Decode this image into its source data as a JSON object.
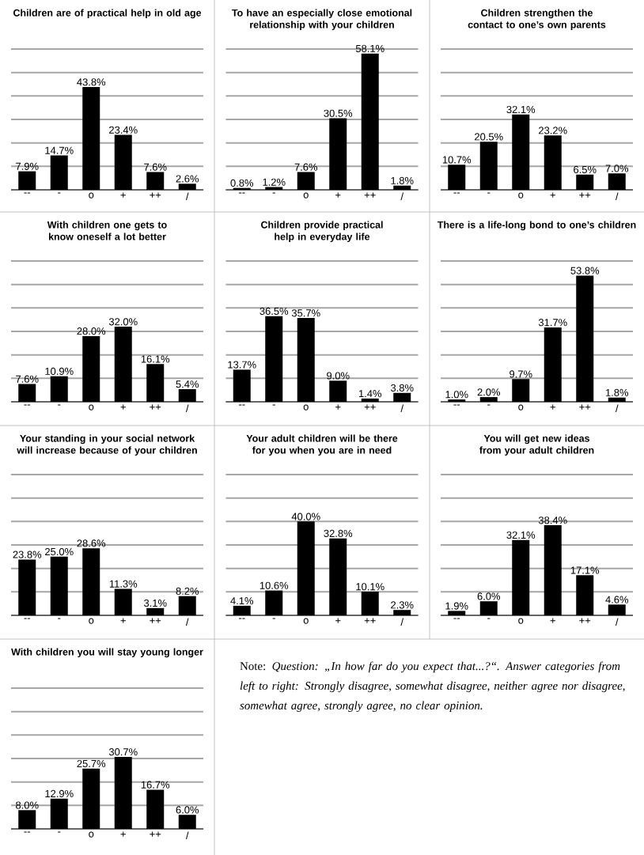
{
  "chart_data": [
    {
      "type": "bar",
      "title": "Children are of practical help in old age",
      "categories": [
        "--",
        "-",
        "o",
        "+",
        "++",
        "/"
      ],
      "values": [
        7.9,
        14.7,
        43.8,
        23.4,
        7.6,
        2.6
      ],
      "value_labels": [
        "7.9%",
        "14.7%",
        "43.8%",
        "23.4%",
        "7.6%",
        "2.6%"
      ],
      "color": "#000000",
      "ylim": [
        0,
        60
      ],
      "yticks": [
        {
          "value": 0,
          "label": null
        },
        {
          "value": 10,
          "label": null
        },
        {
          "value": 20,
          "label": null
        },
        {
          "value": 30,
          "label": null
        },
        {
          "value": 40,
          "label": null
        },
        {
          "value": 50,
          "label": null
        },
        {
          "value": 60,
          "label": null
        }
      ],
      "grid": "y",
      "tick_labels": "x"
    },
    {
      "type": "bar",
      "title": "To have an especially close emotional relationship with your children",
      "categories": [
        "--",
        "-",
        "o",
        "+",
        "++",
        "/"
      ],
      "values": [
        0.8,
        1.2,
        7.6,
        30.5,
        58.1,
        1.8
      ],
      "value_labels": [
        "0.8%",
        "1.2%",
        "7.6%",
        "30.5%",
        "58.1%",
        "1.8%"
      ],
      "color": "#000000",
      "ylim": [
        0,
        60
      ],
      "yticks": [
        {
          "value": 0,
          "label": null
        },
        {
          "value": 10,
          "label": null
        },
        {
          "value": 20,
          "label": null
        },
        {
          "value": 30,
          "label": null
        },
        {
          "value": 40,
          "label": null
        },
        {
          "value": 50,
          "label": null
        },
        {
          "value": 60,
          "label": null
        }
      ],
      "grid": "y",
      "tick_labels": "x"
    },
    {
      "type": "bar",
      "title": "Children strengthen the contact to one’s own parents",
      "categories": [
        "--",
        "-",
        "o",
        "+",
        "++",
        "/"
      ],
      "values": [
        10.7,
        20.5,
        32.1,
        23.2,
        6.5,
        7.0
      ],
      "value_labels": [
        "10.7%",
        "20.5%",
        "32.1%",
        "23.2%",
        "6.5%",
        "7.0%"
      ],
      "color": "#000000",
      "ylim": [
        0,
        60
      ],
      "yticks": [
        {
          "value": 0,
          "label": null
        },
        {
          "value": 10,
          "label": null
        },
        {
          "value": 20,
          "label": null
        },
        {
          "value": 30,
          "label": null
        },
        {
          "value": 40,
          "label": null
        },
        {
          "value": 50,
          "label": null
        },
        {
          "value": 60,
          "label": null
        }
      ],
      "grid": "y",
      "tick_labels": "x"
    },
    {
      "type": "bar",
      "title": "With children one gets to know oneself a lot better",
      "categories": [
        "--",
        "-",
        "o",
        "+",
        "++",
        "/"
      ],
      "values": [
        7.6,
        10.9,
        28.0,
        32.0,
        16.1,
        5.4
      ],
      "value_labels": [
        "7.6%",
        "10.9%",
        "28.0%",
        "32.0%",
        "16.1%",
        "5.4%"
      ],
      "color": "#000000",
      "ylim": [
        0,
        60
      ],
      "yticks": [
        {
          "value": 0,
          "label": null
        },
        {
          "value": 10,
          "label": null
        },
        {
          "value": 20,
          "label": null
        },
        {
          "value": 30,
          "label": null
        },
        {
          "value": 40,
          "label": null
        },
        {
          "value": 50,
          "label": null
        },
        {
          "value": 60,
          "label": null
        }
      ],
      "grid": "y",
      "tick_labels": "x"
    },
    {
      "type": "bar",
      "title": "Children provide practical help in everyday life",
      "categories": [
        "--",
        "-",
        "o",
        "+",
        "++",
        "/"
      ],
      "values": [
        13.7,
        36.5,
        35.7,
        9.0,
        1.4,
        3.8
      ],
      "value_labels": [
        "13.7%",
        "36.5%",
        "35.7%",
        "9.0%",
        "1.4%",
        "3.8%"
      ],
      "color": "#000000",
      "ylim": [
        0,
        60
      ],
      "yticks": [
        {
          "value": 0,
          "label": null
        },
        {
          "value": 10,
          "label": null
        },
        {
          "value": 20,
          "label": null
        },
        {
          "value": 30,
          "label": null
        },
        {
          "value": 40,
          "label": null
        },
        {
          "value": 50,
          "label": null
        },
        {
          "value": 60,
          "label": null
        }
      ],
      "grid": "y",
      "tick_labels": "x"
    },
    {
      "type": "bar",
      "title": "There is a life-long bond to one’s children",
      "categories": [
        "--",
        "-",
        "o",
        "+",
        "++",
        "/"
      ],
      "values": [
        1.0,
        2.0,
        9.7,
        31.7,
        53.8,
        1.8
      ],
      "value_labels": [
        "1.0%",
        "2.0%",
        "9.7%",
        "31.7%",
        "53.8%",
        "1.8%"
      ],
      "color": "#000000",
      "ylim": [
        0,
        60
      ],
      "yticks": [
        {
          "value": 0,
          "label": null
        },
        {
          "value": 10,
          "label": null
        },
        {
          "value": 20,
          "label": null
        },
        {
          "value": 30,
          "label": null
        },
        {
          "value": 40,
          "label": null
        },
        {
          "value": 50,
          "label": null
        },
        {
          "value": 60,
          "label": null
        }
      ],
      "grid": "y",
      "tick_labels": "x"
    },
    {
      "type": "bar",
      "title": "Your standing in your social network will increase because of your children",
      "categories": [
        "--",
        "-",
        "o",
        "+",
        "++",
        "/"
      ],
      "values": [
        23.8,
        25.0,
        28.6,
        11.3,
        3.1,
        8.2
      ],
      "value_labels": [
        "23.8%",
        "25.0%",
        "28.6%",
        "11.3%",
        "3.1%",
        "8.2%"
      ],
      "color": "#000000",
      "ylim": [
        0,
        60
      ],
      "yticks": [
        {
          "value": 0,
          "label": null
        },
        {
          "value": 10,
          "label": null
        },
        {
          "value": 20,
          "label": null
        },
        {
          "value": 30,
          "label": null
        },
        {
          "value": 40,
          "label": null
        },
        {
          "value": 50,
          "label": null
        },
        {
          "value": 60,
          "label": null
        }
      ],
      "grid": "y",
      "tick_labels": "x"
    },
    {
      "type": "bar",
      "title": "Your adult children will be there for you when you are in need",
      "categories": [
        "--",
        "-",
        "o",
        "+",
        "++",
        "/"
      ],
      "values": [
        4.1,
        10.6,
        40.0,
        32.8,
        10.1,
        2.3
      ],
      "value_labels": [
        "4.1%",
        "10.6%",
        "40.0%",
        "32.8%",
        "10.1%",
        "2.3%"
      ],
      "color": "#000000",
      "ylim": [
        0,
        60
      ],
      "yticks": [
        {
          "value": 0,
          "label": null
        },
        {
          "value": 10,
          "label": null
        },
        {
          "value": 20,
          "label": null
        },
        {
          "value": 30,
          "label": null
        },
        {
          "value": 40,
          "label": null
        },
        {
          "value": 50,
          "label": null
        },
        {
          "value": 60,
          "label": null
        }
      ],
      "grid": "y",
      "tick_labels": "x"
    },
    {
      "type": "bar",
      "title": "You will get new ideas from your adult children",
      "categories": [
        "--",
        "-",
        "o",
        "+",
        "++",
        "/"
      ],
      "values": [
        1.9,
        6.0,
        32.1,
        38.4,
        17.1,
        4.6
      ],
      "value_labels": [
        "1.9%",
        "6.0%",
        "32.1%",
        "38.4%",
        "17.1%",
        "4.6%"
      ],
      "color": "#000000",
      "ylim": [
        0,
        60
      ],
      "yticks": [
        {
          "value": 0,
          "label": null
        },
        {
          "value": 10,
          "label": null
        },
        {
          "value": 20,
          "label": null
        },
        {
          "value": 30,
          "label": null
        },
        {
          "value": 40,
          "label": null
        },
        {
          "value": 50,
          "label": null
        },
        {
          "value": 60,
          "label": null
        }
      ],
      "grid": "y",
      "tick_labels": "x"
    },
    {
      "type": "bar",
      "title": "With children you will stay young longer",
      "categories": [
        "--",
        "-",
        "o",
        "+",
        "++",
        "/"
      ],
      "values": [
        8.0,
        12.9,
        25.7,
        30.7,
        16.7,
        6.0
      ],
      "value_labels": [
        "8.0%",
        "12.9%",
        "25.7%",
        "30.7%",
        "16.7%",
        "6.0%"
      ],
      "color": "#000000",
      "ylim": [
        0,
        60
      ],
      "yticks": [
        {
          "value": 0,
          "label": null
        },
        {
          "value": 10,
          "label": null
        },
        {
          "value": 20,
          "label": null
        },
        {
          "value": 30,
          "label": null
        },
        {
          "value": 40,
          "label": null
        },
        {
          "value": 50,
          "label": null
        },
        {
          "value": 60,
          "label": null
        }
      ],
      "grid": "y",
      "tick_labels": "x",
      "annotations": [
        "Note: *Question: „In how far do you expect that...?“. Answer categories from left to right: Strongly disagree, somewhat disagree, neither agree nor disagree, somewhat agree, strongly agree, no clear opinion.*"
      ]
    }
  ]
}
